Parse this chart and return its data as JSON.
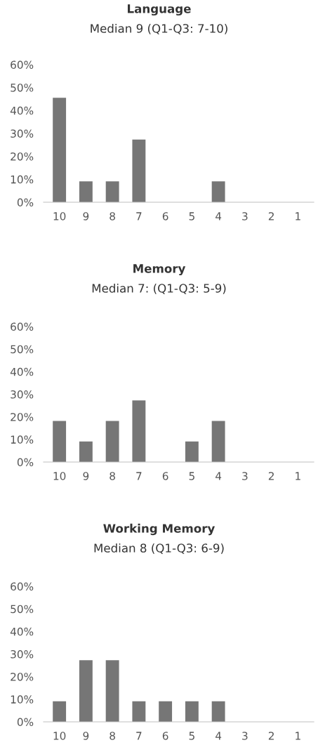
{
  "chart_data": [
    {
      "type": "bar",
      "title": "Language",
      "subtitle": "Median 9 (Q1-Q3: 7-10)",
      "categories": [
        "10",
        "9",
        "8",
        "7",
        "6",
        "5",
        "4",
        "3",
        "2",
        "1"
      ],
      "values": [
        45.5,
        9.1,
        9.1,
        27.3,
        0,
        0,
        9.1,
        0,
        0,
        0
      ],
      "color": "#767676",
      "ylim": [
        0,
        60
      ],
      "yticks": [
        {
          "value": 0,
          "label": "0%"
        },
        {
          "value": 10,
          "label": "10%"
        },
        {
          "value": 20,
          "label": "20%"
        },
        {
          "value": 30,
          "label": "30%"
        },
        {
          "value": 40,
          "label": "40%"
        },
        {
          "value": 50,
          "label": "50%"
        },
        {
          "value": 60,
          "label": "60%"
        }
      ],
      "grid": false
    },
    {
      "type": "bar",
      "title": "Memory",
      "subtitle": "Median 7: (Q1-Q3: 5-9)",
      "categories": [
        "10",
        "9",
        "8",
        "7",
        "6",
        "5",
        "4",
        "3",
        "2",
        "1"
      ],
      "values": [
        18.2,
        9.1,
        18.2,
        27.3,
        0,
        9.1,
        18.2,
        0,
        0,
        0
      ],
      "color": "#767676",
      "ylim": [
        0,
        60
      ],
      "yticks": [
        {
          "value": 0,
          "label": "0%"
        },
        {
          "value": 10,
          "label": "10%"
        },
        {
          "value": 20,
          "label": "20%"
        },
        {
          "value": 30,
          "label": "30%"
        },
        {
          "value": 40,
          "label": "40%"
        },
        {
          "value": 50,
          "label": "50%"
        },
        {
          "value": 60,
          "label": "60%"
        }
      ],
      "grid": false
    },
    {
      "type": "bar",
      "title": "Working Memory",
      "subtitle": "Median 8 (Q1-Q3: 6-9)",
      "categories": [
        "10",
        "9",
        "8",
        "7",
        "6",
        "5",
        "4",
        "3",
        "2",
        "1"
      ],
      "values": [
        9.1,
        27.3,
        27.3,
        9.1,
        9.1,
        9.1,
        9.1,
        0,
        0,
        0
      ],
      "color": "#767676",
      "ylim": [
        0,
        60
      ],
      "yticks": [
        {
          "value": 0,
          "label": "0%"
        },
        {
          "value": 10,
          "label": "10%"
        },
        {
          "value": 20,
          "label": "20%"
        },
        {
          "value": 30,
          "label": "30%"
        },
        {
          "value": 40,
          "label": "40%"
        },
        {
          "value": 50,
          "label": "50%"
        },
        {
          "value": 60,
          "label": "60%"
        }
      ],
      "grid": false
    }
  ]
}
